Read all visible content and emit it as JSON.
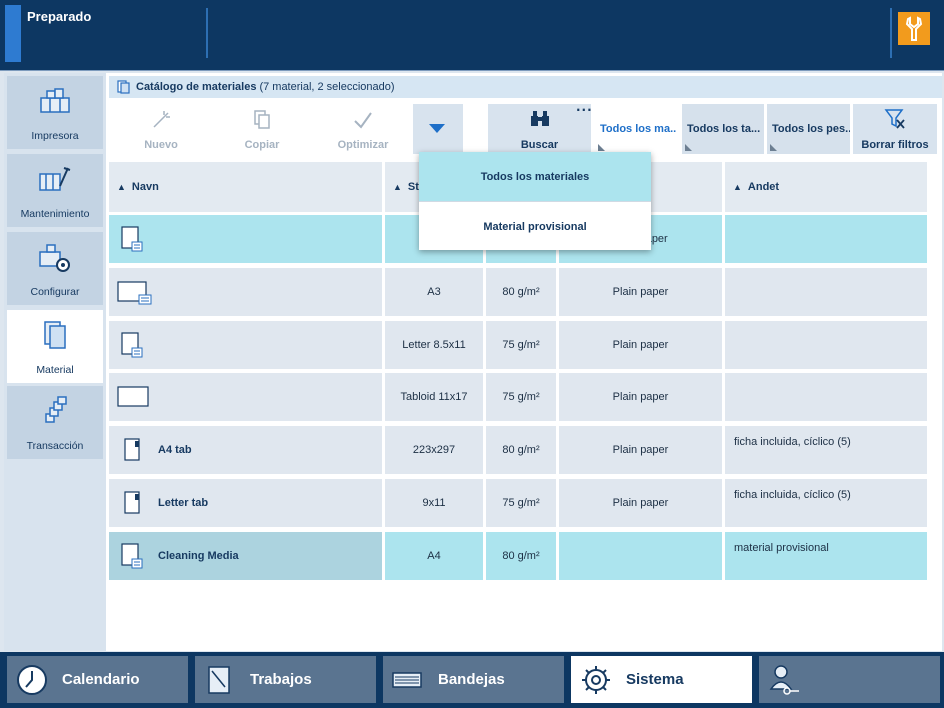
{
  "status": {
    "text": "Preparado"
  },
  "sidebar": {
    "items": [
      {
        "label": "Impresora",
        "icon": "printer-icon",
        "active": false
      },
      {
        "label": "Mantenimiento",
        "icon": "maintenance-icon",
        "active": false
      },
      {
        "label": "Configurar",
        "icon": "configure-icon",
        "active": false
      },
      {
        "label": "Material",
        "icon": "material-icon",
        "active": true
      },
      {
        "label": "Transacción",
        "icon": "transaction-icon",
        "active": false
      }
    ]
  },
  "breadcrumb": {
    "title": "Catálogo de materiales",
    "count": "(7 material, 2 seleccionado)"
  },
  "toolbar": {
    "new_label": "Nuevo",
    "copy_label": "Copiar",
    "optimize_label": "Optimizar",
    "search_label": "Buscar",
    "clear_filters_label": "Borrar filtros",
    "more_dots": "..."
  },
  "filters": {
    "tabs": [
      {
        "label": "Todos los ma...",
        "active": true
      },
      {
        "label": "Todos los ta...",
        "active": false
      },
      {
        "label": "Todos los pes...",
        "active": false
      }
    ]
  },
  "dropdown": {
    "items": [
      {
        "label": "Todos los materiales",
        "active": true
      },
      {
        "label": "Material provisional",
        "active": false
      }
    ]
  },
  "table": {
    "headers": {
      "name": "Navn",
      "size": "St",
      "other": "Andet"
    },
    "rows": [
      {
        "name": "",
        "size": "",
        "weight": "",
        "type": "plain paper",
        "other": "",
        "icon": "portrait",
        "selected": true
      },
      {
        "name": "",
        "size": "A3",
        "weight": "80 g/m²",
        "type": "Plain paper",
        "other": "",
        "icon": "landscape",
        "selected": false
      },
      {
        "name": "",
        "size": "Letter 8.5x11",
        "weight": "75 g/m²",
        "type": "Plain paper",
        "other": "",
        "icon": "portrait",
        "selected": false
      },
      {
        "name": "",
        "size": "Tabloid 11x17",
        "weight": "75 g/m²",
        "type": "Plain paper",
        "other": "",
        "icon": "landscape-plain",
        "selected": false
      },
      {
        "name": "A4 tab",
        "size": "223x297",
        "weight": "80 g/m²",
        "type": "Plain paper",
        "other": "ficha incluida, cíclico (5)",
        "icon": "tab",
        "selected": false
      },
      {
        "name": "Letter tab",
        "size": "9x11",
        "weight": "75 g/m²",
        "type": "Plain paper",
        "other": "ficha incluida, cíclico (5)",
        "icon": "tab",
        "selected": false
      },
      {
        "name": "Cleaning Media",
        "size": "A4",
        "weight": "80 g/m²",
        "type": "",
        "other": "material provisional",
        "icon": "portrait",
        "selected": true
      }
    ]
  },
  "bottom_nav": {
    "items": [
      {
        "label": "Calendario",
        "icon": "clock-icon",
        "active": false
      },
      {
        "label": "Trabajos",
        "icon": "jobs-icon",
        "active": false
      },
      {
        "label": "Bandejas",
        "icon": "trays-icon",
        "active": false
      },
      {
        "label": "Sistema",
        "icon": "gear-icon",
        "active": true
      },
      {
        "label": "",
        "icon": "user-key-icon",
        "active": false
      }
    ]
  },
  "colors": {
    "top_bar": "#0d3762",
    "accent_orange": "#f29b1d",
    "selected_row": "#ace4ee",
    "active_filter_text": "#1e6fc8"
  }
}
